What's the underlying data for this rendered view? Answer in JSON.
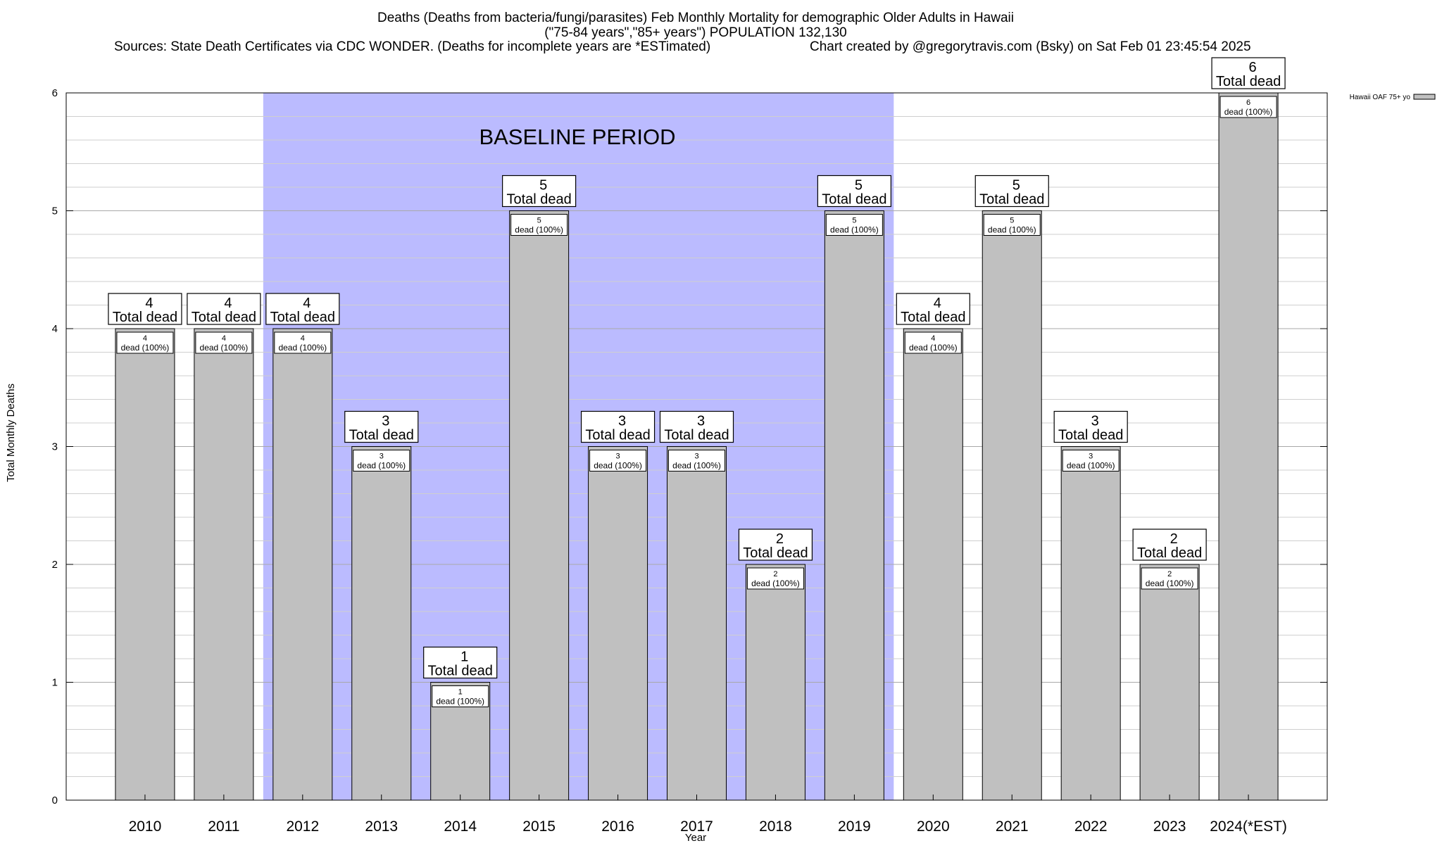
{
  "chart_data": {
    "type": "bar",
    "title": "Deaths (Deaths from bacteria/fungi/parasites) Feb Monthly Mortality for demographic Older Adults in Hawaii",
    "subtitle": "(\"75-84 years\",\"85+ years\") POPULATION 132,130",
    "source_line": "Sources: State Death Certificates via CDC WONDER. (Deaths for incomplete years are *ESTimated)",
    "credit_line": "Chart created by @gregorytravis.com (Bsky) on Sat Feb 01 23:45:54 2025",
    "xlabel": "Year",
    "ylabel": "Total Monthly Deaths",
    "ylim": [
      0,
      6
    ],
    "y_ticks": [
      "0",
      "1",
      "2",
      "3",
      "4",
      "5",
      "6"
    ],
    "grid": true,
    "legend": {
      "position": "top-right",
      "label": "Hawaii OAF 75+ yo"
    },
    "baseline_label": "BASELINE PERIOD",
    "baseline_range": [
      "2012",
      "2019"
    ],
    "bar_color": "#c0c0c0",
    "baseline_color": "#bbbbff",
    "total_label_suffix": "Total dead",
    "categories": [
      "2010",
      "2011",
      "2012",
      "2013",
      "2014",
      "2015",
      "2016",
      "2017",
      "2018",
      "2019",
      "2020",
      "2021",
      "2022",
      "2023",
      "2024(*EST)"
    ],
    "series": [
      {
        "name": "Hawaii OAF 75+ yo",
        "values": [
          4,
          4,
          4,
          3,
          1,
          5,
          3,
          3,
          2,
          5,
          4,
          5,
          3,
          2,
          6
        ],
        "inner_labels": [
          "dead (100%)",
          "dead (100%)",
          "dead (100%)",
          "dead (100%)",
          "dead (100%)",
          "dead (100%)",
          "dead (100%)",
          "dead (100%)",
          "dead (100%)",
          "dead (100%)",
          "dead (100%)",
          "dead (100%)",
          "dead (100%)",
          "dead (100%)",
          "dead (100%)"
        ]
      }
    ]
  }
}
